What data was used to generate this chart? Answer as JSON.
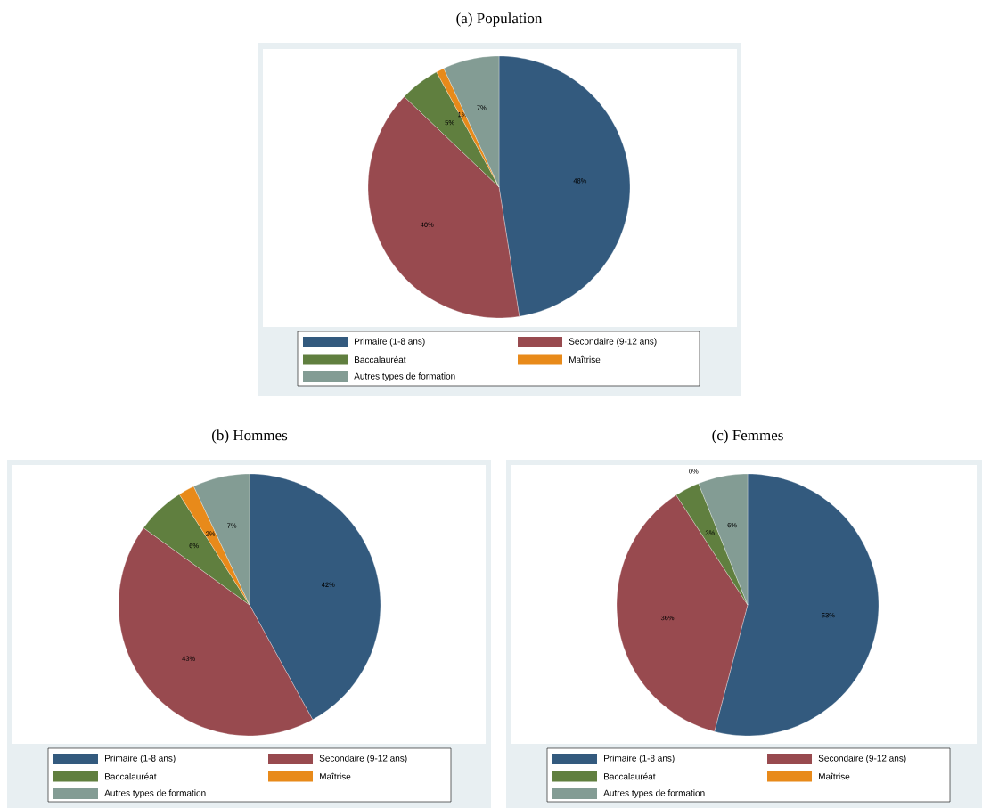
{
  "chart_data": [
    {
      "type": "pie",
      "title": "(a) Population",
      "categories": [
        "Primaire (1-8 ans)",
        "Secondaire (9-12 ans)",
        "Baccalauréat",
        "Maîtrise",
        "Autres types de formation"
      ],
      "values": [
        48,
        40,
        5,
        1,
        7
      ],
      "value_labels": [
        "48%",
        "40%",
        "5%",
        "1%",
        "7%"
      ],
      "colors": [
        "#335a7e",
        "#984a4f",
        "#607f3f",
        "#e88a1a",
        "#839c94"
      ],
      "legend": "bottom"
    },
    {
      "type": "pie",
      "title": "(b) Hommes",
      "categories": [
        "Primaire (1-8 ans)",
        "Secondaire (9-12 ans)",
        "Baccalauréat",
        "Maîtrise",
        "Autres types de formation"
      ],
      "values": [
        42,
        43,
        6,
        2,
        7
      ],
      "value_labels": [
        "42%",
        "43%",
        "6%",
        "2%",
        "7%"
      ],
      "colors": [
        "#335a7e",
        "#984a4f",
        "#607f3f",
        "#e88a1a",
        "#839c94"
      ],
      "legend": "bottom"
    },
    {
      "type": "pie",
      "title": "(c) Femmes",
      "categories": [
        "Primaire (1-8 ans)",
        "Secondaire (9-12 ans)",
        "Baccalauréat",
        "Maîtrise",
        "Autres types de formation"
      ],
      "values": [
        53,
        36,
        3,
        0,
        6
      ],
      "value_labels": [
        "53%",
        "36%",
        "3%",
        "0%",
        "6%"
      ],
      "colors": [
        "#335a7e",
        "#984a4f",
        "#607f3f",
        "#e88a1a",
        "#839c94"
      ],
      "legend": "bottom"
    }
  ]
}
